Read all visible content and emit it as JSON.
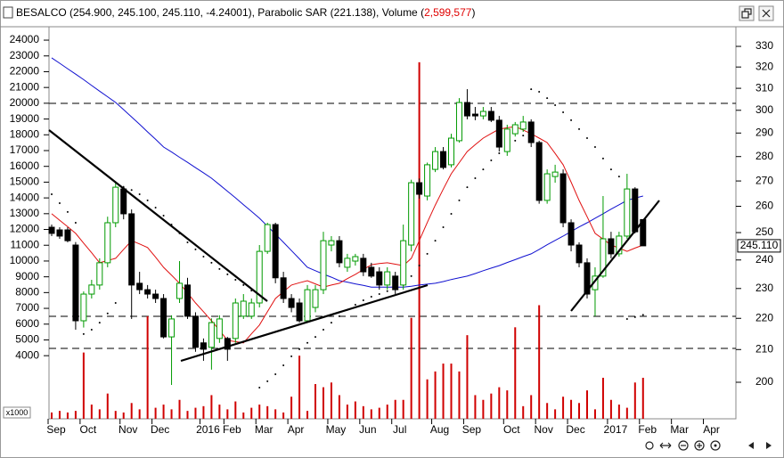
{
  "chart_data": {
    "type": "candlestick",
    "title": "BESALCO (254.900, 245.100, 245.110, -4.24001), Parabolic SAR (221.138), Volume (",
    "title_volume": "2,599,577",
    "title_end": ")",
    "title_volume_color": "#e00000",
    "volume_unit": "x1000",
    "last_price_label": "245.110",
    "log_y": true,
    "up_color": "#009a00",
    "down_color": "#000000",
    "categories": [
      "Sep",
      null,
      null,
      null,
      "Oct",
      null,
      null,
      null,
      null,
      "Nov",
      null,
      null,
      null,
      "Dec",
      null,
      null,
      null,
      null,
      null,
      "2016",
      null,
      null,
      "Feb",
      null,
      null,
      null,
      "Mar",
      null,
      null,
      null,
      "Apr",
      null,
      null,
      null,
      null,
      "May",
      null,
      null,
      null,
      "Jun",
      null,
      null,
      null,
      "Jul",
      null,
      null,
      null,
      null,
      "Aug",
      null,
      null,
      null,
      "Sep",
      null,
      null,
      null,
      null,
      "Oct",
      null,
      null,
      null,
      "Nov",
      null,
      null,
      null,
      "Dec",
      null,
      null,
      null,
      null,
      "2017",
      null,
      null,
      null,
      "Feb",
      null,
      null,
      null,
      "Mar",
      null,
      null,
      null,
      "Apr",
      null,
      null,
      null
    ],
    "open": [
      252.0,
      251.0,
      251.0,
      245.4,
      219.2,
      228.1,
      231.2,
      239.0,
      253.7,
      266.8,
      257.1,
      231.8,
      229.6,
      228.1,
      226.6,
      214.0,
      226.6,
      231.2,
      220.7,
      212.1,
      210.7,
      213.5,
      213.5,
      213.5,
      220.7,
      220.7,
      225.1,
      243.1,
      253.0,
      233.7,
      226.6,
      225.1,
      219.2,
      223.6,
      229.6,
      245.4,
      247.0,
      237.4,
      239.6,
      240.6,
      237.4,
      235.8,
      231.2,
      234.3,
      231.2,
      245.4,
      269.3,
      264.0,
      274.7,
      282.1,
      276.6,
      286.7,
      303.5,
      298.3,
      297.5,
      299.5,
      295.6,
      282.1,
      289.7,
      291.7,
      294.8,
      285.9,
      262.3,
      271.8,
      272.9,
      253.7,
      245.4,
      239.0,
      229.6,
      234.3,
      247.7,
      242.2,
      248.7,
      266.8,
      254.9,
      null,
      null,
      null,
      null,
      null,
      null,
      null,
      null,
      null,
      null,
      null
    ],
    "high": [
      253,
      252,
      252,
      246.5,
      229,
      233,
      240.6,
      256,
      269.3,
      268,
      258.8,
      235.8,
      231.2,
      229.6,
      228.1,
      221,
      239.6,
      233.7,
      222,
      213.5,
      220,
      221,
      214.0,
      226.6,
      228.1,
      226.6,
      245.4,
      253.7,
      253.7,
      235.8,
      228.1,
      226.6,
      231.2,
      231.2,
      250.3,
      248.7,
      248.7,
      242.2,
      242.2,
      242.2,
      239,
      237.4,
      237.4,
      235.8,
      253,
      270.5,
      271,
      277.5,
      284.0,
      284.0,
      289.7,
      305.5,
      309.6,
      301.5,
      301.5,
      301.5,
      297.5,
      293.6,
      294.8,
      297.5,
      296,
      286.7,
      274.7,
      276.6,
      274.7,
      255,
      246.4,
      240.6,
      237.4,
      264.0,
      250.3,
      250.3,
      272.9,
      267.5,
      254.9,
      null,
      null,
      null,
      null,
      null,
      null,
      null,
      null,
      null,
      null,
      null
    ],
    "low": [
      248.7,
      247.7,
      246.4,
      216.3,
      217,
      226.6,
      229.6,
      237.4,
      252,
      255,
      219.8,
      228.1,
      226.6,
      225.1,
      213.5,
      199.2,
      225.1,
      219.8,
      209.3,
      206.5,
      203.8,
      212.1,
      206.5,
      212.1,
      219.8,
      219.8,
      223.6,
      242.2,
      231.8,
      225.1,
      222,
      218.6,
      218.6,
      222,
      228.1,
      243.1,
      237.4,
      235.8,
      238,
      234.3,
      233.7,
      229.6,
      229.6,
      228.1,
      229.6,
      243.1,
      263,
      262.3,
      273.6,
      274.7,
      275.5,
      285.9,
      296,
      295.6,
      296,
      294.8,
      282.1,
      280.3,
      288.5,
      290.5,
      284.0,
      261,
      261,
      269.3,
      252,
      243.1,
      237.4,
      226.6,
      220.7,
      233.7,
      240.6,
      241.2,
      247.7,
      249.7,
      245.1,
      null,
      null,
      null,
      null,
      null,
      null,
      null,
      null,
      null,
      null,
      null
    ],
    "close": [
      249.7,
      248.7,
      247,
      219.2,
      228.1,
      231.2,
      239.0,
      253.7,
      267.5,
      257.1,
      231.2,
      229.6,
      228.1,
      226.6,
      214.0,
      219.8,
      231.8,
      220.7,
      210.7,
      210.1,
      218.6,
      219.8,
      210.1,
      225.1,
      225.7,
      225.1,
      243.1,
      253.0,
      233.7,
      226.6,
      223.6,
      219.2,
      229.6,
      229.6,
      247.0,
      247.0,
      239.0,
      240.6,
      241.2,
      235.8,
      234.3,
      231.2,
      235.8,
      229.6,
      247.0,
      269.3,
      264.7,
      276.6,
      282.1,
      275.5,
      287.8,
      303.5,
      297.5,
      297.5,
      299.5,
      295.6,
      284.0,
      291.7,
      293.6,
      294.8,
      285.9,
      262.3,
      272.9,
      273.6,
      253.7,
      245.4,
      239.0,
      228.1,
      234.3,
      247.7,
      242.2,
      248.7,
      266.8,
      250.3,
      245.11,
      null,
      null,
      null,
      null,
      null,
      null,
      null,
      null,
      null,
      null,
      null
    ],
    "series": [
      {
        "kind": "line",
        "color": "#1010d0",
        "values": [
          324.4,
          321.8,
          319.2,
          316.6,
          314.0,
          311.3,
          308.7,
          306.1,
          303.5,
          300.3,
          297.0,
          293.8,
          290.5,
          287.3,
          284.0,
          281.9,
          279.7,
          277.6,
          275.4,
          273.3,
          271.1,
          268.5,
          265.9,
          263.3,
          260.6,
          258.0,
          255.4,
          252.4,
          249.4,
          246.4,
          243.4,
          240.4,
          237.4,
          236.2,
          235.0,
          233.9,
          232.7,
          232.2,
          231.6,
          231.1,
          230.5,
          230.5,
          230.5,
          230.5,
          230.5,
          230.8,
          231.2,
          231.5,
          231.8,
          232.4,
          233.1,
          233.7,
          234.3,
          235.2,
          236.2,
          237.1,
          238.0,
          239.1,
          240.1,
          241.2,
          242.2,
          243.8,
          245.5,
          247.1,
          248.7,
          250.4,
          252.1,
          253.7,
          255.4,
          257.1,
          258.9,
          260.6,
          262.3,
          263.2,
          264.0,
          null,
          null,
          null,
          null,
          null,
          null,
          null,
          null,
          null,
          null,
          null
        ]
      },
      {
        "kind": "line",
        "color": "#e01010",
        "values": [
          257.1,
          254.6,
          252.2,
          249.7,
          246.1,
          242.6,
          239.0,
          239.8,
          240.6,
          243.8,
          247.0,
          245.8,
          244.5,
          241.0,
          237.4,
          234.6,
          231.8,
          228.5,
          225.1,
          222.2,
          219.2,
          216.1,
          212.9,
          212.5,
          212.1,
          215.0,
          217.8,
          222.2,
          226.6,
          228.9,
          231.2,
          232.0,
          232.7,
          231.6,
          230.5,
          231.2,
          231.8,
          233.4,
          234.9,
          236.6,
          238.3,
          238.7,
          239.0,
          238.5,
          238.0,
          240.6,
          247.0,
          253.8,
          260.5,
          266.7,
          272.9,
          277.5,
          282.1,
          285.0,
          287.8,
          289.8,
          291.7,
          292.3,
          292.8,
          291.3,
          289.7,
          287.8,
          285.9,
          281.3,
          276.6,
          269.5,
          262.3,
          256.0,
          249.7,
          247.6,
          245.4,
          244.3,
          243.1,
          244.3,
          245.4,
          null,
          null,
          null,
          null,
          null,
          null,
          null,
          null,
          null,
          null,
          null
        ]
      },
      {
        "kind": "dots",
        "color": "#000000",
        "values": [
          264.7,
          261.2,
          257.8,
          253.7,
          214.9,
          216.3,
          218.6,
          221.6,
          225.1,
          267.5,
          266.4,
          264.7,
          262.3,
          259.5,
          256.4,
          253.0,
          249.7,
          246.4,
          243.8,
          241.2,
          239.0,
          236.8,
          234.9,
          233.0,
          231.2,
          229.3,
          198.4,
          200.3,
          202.4,
          205.1,
          207.9,
          210.1,
          212.1,
          214.0,
          216.3,
          218.6,
          220.7,
          222.8,
          224.5,
          226.0,
          227.2,
          228.1,
          229.1,
          229.9,
          231.2,
          234.3,
          238.0,
          242.2,
          247.0,
          252.0,
          257.1,
          262.3,
          267.5,
          271.1,
          274.7,
          278.4,
          281.4,
          284.0,
          286.7,
          288.9,
          309.6,
          308.4,
          305.5,
          302.3,
          299.1,
          295.6,
          291.7,
          287.8,
          284.0,
          279.2,
          274.7,
          271.8,
          219.8,
          220.4,
          221.138,
          null,
          null,
          null,
          null,
          null,
          null,
          null,
          null,
          null,
          null,
          null
        ]
      },
      {
        "kind": "bar",
        "axis": "y2",
        "color": "#d00000",
        "values": [
          400,
          500,
          400,
          500,
          4200,
          900,
          600,
          1600,
          500,
          400,
          1000,
          600,
          6500,
          700,
          900,
          600,
          1200,
          500,
          700,
          800,
          1500,
          900,
          600,
          1100,
          400,
          700,
          900,
          800,
          600,
          400,
          1400,
          4000,
          500,
          2200,
          2000,
          2300,
          1500,
          900,
          1100,
          800,
          600,
          700,
          900,
          1200,
          1200,
          6400,
          22600,
          2500,
          3000,
          3500,
          3500,
          3000,
          5300,
          1500,
          1200,
          1600,
          2000,
          1800,
          5800,
          800,
          1500,
          7200,
          1000,
          600,
          1400,
          1200,
          1000,
          1800,
          600,
          2600,
          1200,
          900,
          700,
          2300,
          2599.577,
          null,
          null,
          null,
          null,
          null,
          null,
          null,
          null,
          null,
          null,
          null
        ]
      }
    ],
    "ylim": [
      189.4,
      339.8
    ],
    "yticks": [
      200,
      210,
      220,
      230,
      240,
      250,
      260,
      270,
      280,
      290,
      300,
      310,
      320,
      330
    ],
    "y2lim": [
      0,
      24850
    ],
    "y2ticks": [
      4000,
      5000,
      6000,
      7000,
      8000,
      9000,
      10000,
      11000,
      12000,
      13000,
      14000,
      15000,
      16000,
      17000,
      18000,
      19000,
      20000,
      21000,
      22000,
      23000,
      24000
    ]
  }
}
